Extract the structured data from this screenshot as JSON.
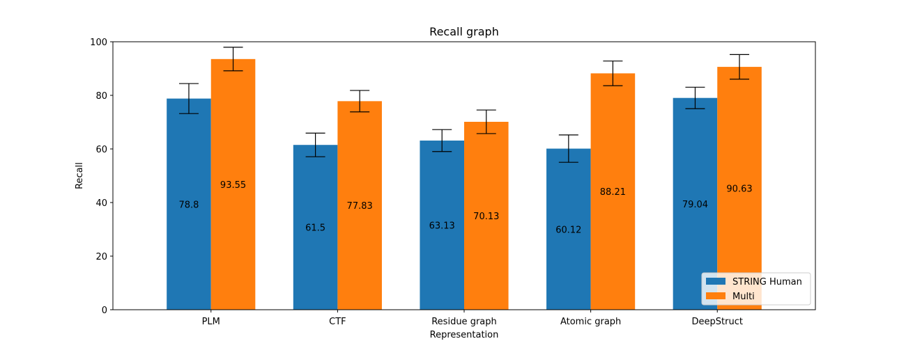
{
  "chart_data": {
    "type": "bar",
    "title": "Recall graph",
    "xlabel": "Representation",
    "ylabel": "Recall",
    "categories": [
      "PLM",
      "CTF",
      "Residue graph",
      "Atomic graph",
      "DeepStruct"
    ],
    "ylim": [
      0,
      100
    ],
    "yticks": [
      0,
      20,
      40,
      60,
      80,
      100
    ],
    "grid": false,
    "legend_position": "lower-right",
    "series": [
      {
        "name": "STRING Human",
        "color": "#1f77b4",
        "values": [
          78.8,
          61.5,
          63.13,
          60.12,
          79.04
        ],
        "value_labels": [
          "78.8",
          "61.5",
          "63.13",
          "60.12",
          "79.04"
        ],
        "errors": [
          5.6,
          4.4,
          4.1,
          5.1,
          4.0
        ]
      },
      {
        "name": "Multi",
        "color": "#ff7f0e",
        "values": [
          93.55,
          77.83,
          70.13,
          88.21,
          90.63
        ],
        "value_labels": [
          "93.55",
          "77.83",
          "70.13",
          "88.21",
          "90.63"
        ],
        "errors": [
          4.4,
          4.0,
          4.4,
          4.6,
          4.6
        ]
      }
    ]
  }
}
